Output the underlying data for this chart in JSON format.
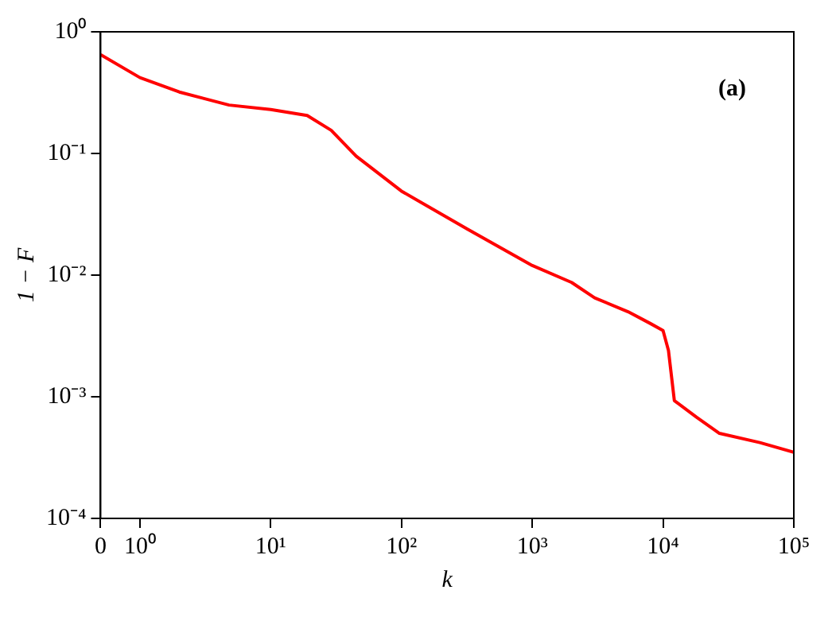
{
  "chart_data": {
    "type": "line",
    "xlabel": "k",
    "ylabel": "1 − F",
    "log": "xy",
    "grid": false,
    "legend": false,
    "marker": "none",
    "line_style": "solid",
    "xlim": [
      0.5,
      100000
    ],
    "xticks": [
      {
        "value": 0.5,
        "label": "0"
      },
      {
        "value": 1,
        "label": "10⁰"
      },
      {
        "value": 10,
        "label": "10¹"
      },
      {
        "value": 100,
        "label": "10²"
      },
      {
        "value": 1000,
        "label": "10³"
      },
      {
        "value": 10000,
        "label": "10⁴"
      },
      {
        "value": 100000,
        "label": "10⁵"
      }
    ],
    "ylim": [
      0.0001,
      1
    ],
    "yticks": [
      {
        "value": 0.0001,
        "label": "10⁻⁴"
      },
      {
        "value": 0.001,
        "label": "10⁻³"
      },
      {
        "value": 0.01,
        "label": "10⁻²"
      },
      {
        "value": 0.1,
        "label": "10⁻¹"
      },
      {
        "value": 1,
        "label": "10⁰"
      }
    ],
    "annotations": [
      "(a)"
    ],
    "series": [
      {
        "color": "#ff0000",
        "x": [
          0.5,
          1,
          2,
          4.8,
          10,
          19,
          29,
          45,
          100,
          316,
          1000,
          2000,
          3000,
          5400,
          8000,
          10000,
          11000,
          12200,
          18000,
          27000,
          55000,
          100000
        ],
        "values": [
          0.65,
          0.42,
          0.32,
          0.25,
          0.23,
          0.205,
          0.155,
          0.095,
          0.049,
          0.024,
          0.012,
          0.0087,
          0.0065,
          0.005,
          0.004,
          0.0035,
          0.0024,
          0.00093,
          0.00068,
          0.0005,
          0.00042,
          0.00035
        ]
      }
    ]
  }
}
